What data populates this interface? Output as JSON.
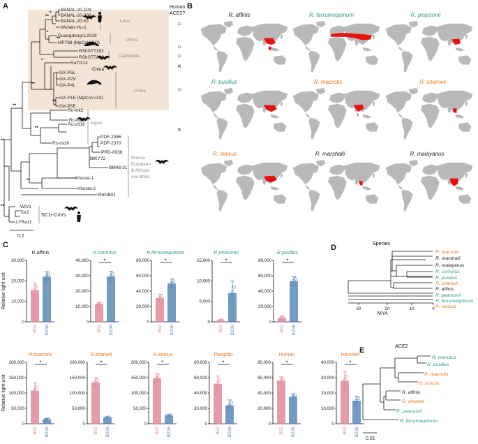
{
  "colors": {
    "orange": "#e8751a",
    "teal": "#2a9a8a",
    "black": "#222222",
    "pink": "#e08a9a",
    "blue": "#5b8ab8",
    "shade": "#f4e4d7",
    "map_land": "#b9b9b9",
    "map_red": "#e8120c"
  },
  "panels": {
    "a": "A",
    "b": "B",
    "c": "C",
    "d": "D",
    "e": "E"
  },
  "panel_a": {
    "header_line1": "Human",
    "header_line2": "ACE2?",
    "scale_label": "0.2",
    "support": "**",
    "support_single": "*",
    "taxa": [
      "BANAL-20-103",
      "BANAL-20-236",
      "BANAL-20-52",
      "Wuhan-Hu-1",
      "Guangdong/1/2019",
      "MP789 (MpCoV-GD)",
      "RShSTT182",
      "RShSTT200",
      "RaTG13",
      "GX-P5L",
      "GX-P2V",
      "GX-P4L",
      "GX-P1E (MpCoV-GX)",
      "GX-P5E",
      "Rc-mk2",
      "Rc-kw8",
      "Rc-o319",
      "Rc-os20",
      "PDF-2386",
      "PDF-2370",
      "PRD-0038",
      "BtKY72",
      "BM48-31",
      "Khosta-1",
      "Khosta-2",
      "RhGB01",
      "WIV1",
      "Tor2",
      "LYRa11"
    ],
    "groups": [
      "Laos",
      "China",
      "Cambodia",
      "China",
      "China",
      "Japan",
      "Russia",
      "European",
      "& African",
      "countries",
      "SC1r-CoVs"
    ],
    "ace2_marks": [
      "○",
      "○",
      "○",
      "×",
      "○",
      "○",
      "×"
    ]
  },
  "panel_b": {
    "maps": [
      {
        "name": "R. affinis",
        "color_key": "black"
      },
      {
        "name": "R. ferrumequinum",
        "color_key": "teal"
      },
      {
        "name": "R. pearsonii",
        "color_key": "teal"
      },
      {
        "name": "R. pusillus",
        "color_key": "teal"
      },
      {
        "name": "R. macrotis",
        "color_key": "orange"
      },
      {
        "name": "R. shameli",
        "color_key": "orange"
      },
      {
        "name": "R. sinicus",
        "color_key": "orange"
      },
      {
        "name": "R. marshalli",
        "color_key": "black"
      },
      {
        "name": "R. malayanus",
        "color_key": "black"
      }
    ]
  },
  "chart_data": [
    {
      "type": "bar",
      "title": "R.affinis",
      "color_key": "black",
      "categories": [
        "B52",
        "B236"
      ],
      "values": [
        15500,
        22000
      ],
      "errors": [
        3500,
        2500
      ],
      "ylim": [
        0,
        30000
      ],
      "yticks": [
        "0",
        "10,000",
        "20,000",
        "30,000"
      ],
      "significant": false,
      "ylabel": "Relative light unit"
    },
    {
      "type": "bar",
      "title": "R.cornutus",
      "color_key": "teal",
      "categories": [
        "B52",
        "B236"
      ],
      "values": [
        11500,
        29500
      ],
      "errors": [
        1000,
        3500
      ],
      "ylim": [
        0,
        40000
      ],
      "yticks": [
        "0",
        "10,000",
        "20,000",
        "30,000",
        "40,000"
      ],
      "significant": true
    },
    {
      "type": "bar",
      "title": "R.ferrumequinum",
      "color_key": "teal",
      "categories": [
        "B52",
        "B236"
      ],
      "values": [
        31000,
        50000
      ],
      "errors": [
        5000,
        6000
      ],
      "ylim": [
        0,
        80000
      ],
      "yticks": [
        "0",
        "20,000",
        "40,000",
        "60,000",
        "80,000"
      ],
      "significant": true
    },
    {
      "type": "bar",
      "title": "R.pearsonii",
      "color_key": "teal",
      "categories": [
        "B52",
        "B236"
      ],
      "values": [
        300,
        7000
      ],
      "errors": [
        200,
        3000
      ],
      "ylim": [
        0,
        15000
      ],
      "yticks": [
        "0",
        "5,000",
        "10,000",
        "15,000"
      ],
      "significant": true
    },
    {
      "type": "bar",
      "title": "R.pusillus",
      "color_key": "teal",
      "categories": [
        "B52",
        "B236"
      ],
      "values": [
        5000,
        53000
      ],
      "errors": [
        2500,
        6000
      ],
      "ylim": [
        0,
        80000
      ],
      "yticks": [
        "0",
        "20,000",
        "40,000",
        "60,000",
        "80,000"
      ],
      "significant": true
    },
    {
      "type": "bar",
      "title": "R.macrotis",
      "color_key": "orange",
      "categories": [
        "B52",
        "B236"
      ],
      "values": [
        108000,
        14000
      ],
      "errors": [
        25000,
        3000
      ],
      "ylim": [
        0,
        200000
      ],
      "yticks": [
        "0",
        "50,000",
        "100,000",
        "150,000",
        "200,000"
      ],
      "significant": true,
      "ylabel": "Relative light unit"
    },
    {
      "type": "bar",
      "title": "R.shameli",
      "color_key": "orange",
      "categories": [
        "B52",
        "B236"
      ],
      "values": [
        135000,
        20000
      ],
      "errors": [
        15000,
        2000
      ],
      "ylim": [
        0,
        200000
      ],
      "yticks": [
        "0",
        "50,000",
        "100,000",
        "150,000",
        "200,000"
      ],
      "significant": true
    },
    {
      "type": "bar",
      "title": "R.sinicus",
      "color_key": "orange",
      "categories": [
        "B52",
        "B236"
      ],
      "values": [
        148000,
        27000
      ],
      "errors": [
        15000,
        2000
      ],
      "ylim": [
        0,
        200000
      ],
      "yticks": [
        "0",
        "50,000",
        "100,000",
        "150,000",
        "200,000"
      ],
      "significant": true
    },
    {
      "type": "bar",
      "title": "Pangolin",
      "color_key": "orange",
      "categories": [
        "B52",
        "B236"
      ],
      "values": [
        52000,
        24000
      ],
      "errors": [
        10000,
        7000
      ],
      "ylim": [
        0,
        80000
      ],
      "yticks": [
        "0",
        "20,000",
        "40,000",
        "60,000",
        "80,000"
      ],
      "significant": true
    },
    {
      "type": "bar",
      "title": "Human",
      "color_key": "orange",
      "categories": [
        "B52",
        "B236"
      ],
      "values": [
        56000,
        35000
      ],
      "errors": [
        5000,
        4000
      ],
      "ylim": [
        0,
        80000
      ],
      "yticks": [
        "0",
        "20,000",
        "40,000",
        "60,000",
        "80,000"
      ],
      "significant": true
    },
    {
      "type": "bar",
      "title": "Hamster",
      "color_key": "orange",
      "categories": [
        "B52",
        "B236"
      ],
      "values": [
        28000,
        15000
      ],
      "errors": [
        6000,
        3000
      ],
      "ylim": [
        0,
        40000
      ],
      "yticks": [
        "0",
        "10,000",
        "20,000",
        "30,000",
        "40,000"
      ],
      "significant": true
    }
  ],
  "panel_d": {
    "title": "Species",
    "xlabel": "MYA",
    "ticks": [
      "30",
      "20",
      "10",
      "0"
    ],
    "species": [
      {
        "name": "R. macrotis",
        "color_key": "orange"
      },
      {
        "name": "R. marshalli",
        "color_key": "black"
      },
      {
        "name": "R. malayanus",
        "color_key": "black"
      },
      {
        "name": "R. cornutus",
        "color_key": "teal"
      },
      {
        "name": "R. pusillus",
        "color_key": "teal"
      },
      {
        "name": "R. shameli",
        "color_key": "orange"
      },
      {
        "name": "R. affinis",
        "color_key": "black"
      },
      {
        "name": "R. pearsonii",
        "color_key": "teal"
      },
      {
        "name": "R. ferrumequinum",
        "color_key": "teal"
      },
      {
        "name": "R. sinicus",
        "color_key": "orange"
      }
    ]
  },
  "panel_e": {
    "title": "ACE2",
    "scale_label": "0.01",
    "species": [
      {
        "name": "R. cornutus",
        "color_key": "teal"
      },
      {
        "name": "R. pusillus",
        "color_key": "teal"
      },
      {
        "name": "R. macrotis",
        "color_key": "orange"
      },
      {
        "name": "R. sinicus",
        "color_key": "orange"
      },
      {
        "name": "R. affinis",
        "color_key": "black"
      },
      {
        "name": "R. shameli",
        "color_key": "orange"
      },
      {
        "name": "R. pearsonii",
        "color_key": "teal"
      },
      {
        "name": "R. ferrumequinum",
        "color_key": "teal"
      }
    ]
  }
}
